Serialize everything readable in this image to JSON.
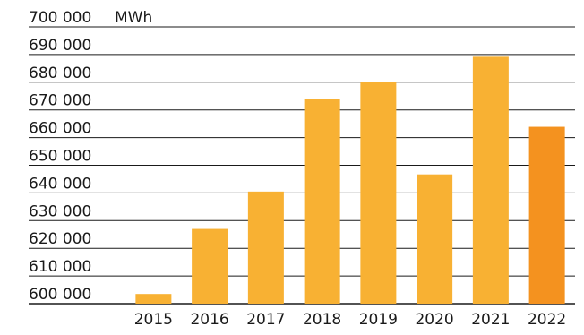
{
  "chart_data": {
    "type": "bar",
    "title": "",
    "xlabel": "",
    "ylabel": "MWh",
    "unit_label": "MWh",
    "ylim": [
      600000,
      700000
    ],
    "ytick_values": [
      600000,
      610000,
      620000,
      630000,
      640000,
      650000,
      660000,
      670000,
      680000,
      690000,
      700000
    ],
    "ytick_labels": [
      "600 000",
      "610 000",
      "620 000",
      "630 000",
      "640 000",
      "650 000",
      "660 000",
      "670 000",
      "680 000",
      "690 000",
      "700 000"
    ],
    "grid": true,
    "categories": [
      "2015",
      "2016",
      "2017",
      "2018",
      "2019",
      "2020",
      "2021",
      "2022"
    ],
    "values": [
      603500,
      627000,
      640500,
      674000,
      680000,
      646700,
      689200,
      663900
    ],
    "bar_colors": [
      "#F8B133",
      "#F8B133",
      "#F8B133",
      "#F8B133",
      "#F8B133",
      "#F8B133",
      "#F8B133",
      "#F4921F"
    ]
  }
}
